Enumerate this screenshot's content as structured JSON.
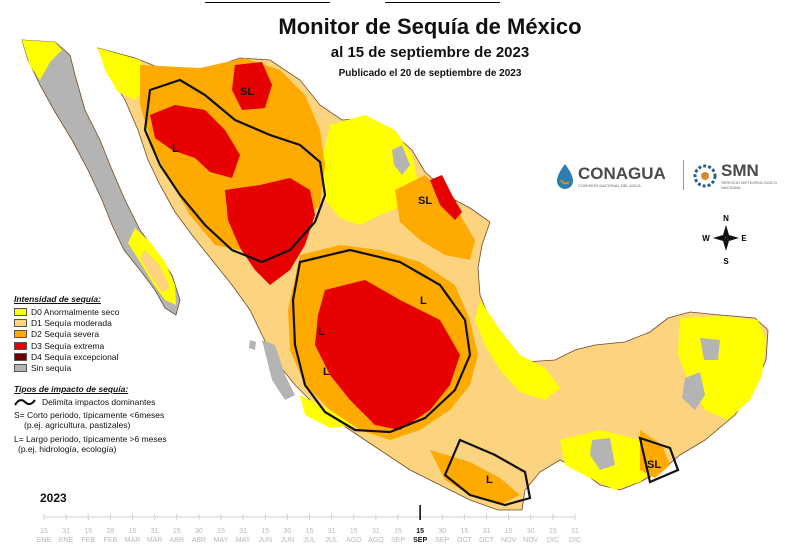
{
  "header": {
    "title": "Monitor de Sequía de México",
    "subtitle": "al 15 de septiembre de 2023",
    "published": "Publicado el 20 de septiembre de 2023"
  },
  "logos": {
    "conagua": {
      "name": "CONAGUA",
      "tagline": "COMISIÓN NACIONAL DEL AGUA"
    },
    "smn": {
      "name": "SMN",
      "tagline": "SERVICIO METEOROLÓGICO NACIONAL"
    }
  },
  "compass": {
    "n": "N",
    "s": "S",
    "e": "E",
    "w": "W"
  },
  "colors": {
    "water": "#ffffff",
    "land_none": "#b4b4b4",
    "d0": "#ffff00",
    "d1": "#fcd37f",
    "d2": "#ffaa00",
    "d3": "#e60000",
    "d4": "#730000",
    "border": "#6e4c2a",
    "impact_line": "#111111"
  },
  "legend": {
    "heading": "Intensidad de sequía:",
    "items": [
      {
        "label": "D0 Anormalmente seco",
        "color": "#ffff00"
      },
      {
        "label": "D1 Sequía moderada",
        "color": "#fcd37f"
      },
      {
        "label": "D2 Sequía severa",
        "color": "#ffaa00"
      },
      {
        "label": "D3 Sequía extrema",
        "color": "#e60000"
      },
      {
        "label": "D4 Sequía excepcional",
        "color": "#730000"
      },
      {
        "label": "Sin sequía",
        "color": "#b4b4b4"
      }
    ]
  },
  "impact": {
    "heading": "Tipos de impacto de sequía:",
    "line_label": "Delimita impactos dominantes",
    "short_1": "S= Corto periodo, típicamente <6meses",
    "short_2": "(p.ej. agricultura, pastizales)",
    "long_1": "L= Largo periodo, típicamente >6 meses",
    "long_2": "(p.ej. hidrología, ecología)"
  },
  "map_labels": [
    "SL",
    "L",
    "SL",
    "L",
    "L",
    "L",
    "L",
    "SL"
  ],
  "timeline": {
    "year": "2023",
    "selected_index": 17,
    "entries": [
      {
        "day": "15",
        "month": "ENE"
      },
      {
        "day": "31",
        "month": "ENE"
      },
      {
        "day": "15",
        "month": "FEB"
      },
      {
        "day": "28",
        "month": "FEB"
      },
      {
        "day": "15",
        "month": "MAR"
      },
      {
        "day": "31",
        "month": "MAR"
      },
      {
        "day": "15",
        "month": "ABR"
      },
      {
        "day": "30",
        "month": "ABR"
      },
      {
        "day": "15",
        "month": "MAY"
      },
      {
        "day": "31",
        "month": "MAY"
      },
      {
        "day": "15",
        "month": "JUN"
      },
      {
        "day": "30",
        "month": "JUN"
      },
      {
        "day": "15",
        "month": "JUL"
      },
      {
        "day": "31",
        "month": "JUL"
      },
      {
        "day": "15",
        "month": "AGO"
      },
      {
        "day": "31",
        "month": "AGO"
      },
      {
        "day": "15",
        "month": "SEP"
      },
      {
        "day": "15",
        "month": "SEP"
      },
      {
        "day": "30",
        "month": "SEP"
      },
      {
        "day": "15",
        "month": "OCT"
      },
      {
        "day": "31",
        "month": "OCT"
      },
      {
        "day": "15",
        "month": "NOV"
      },
      {
        "day": "30",
        "month": "NOV"
      },
      {
        "day": "15",
        "month": "DIC"
      },
      {
        "day": "31",
        "month": "DIC"
      }
    ]
  }
}
